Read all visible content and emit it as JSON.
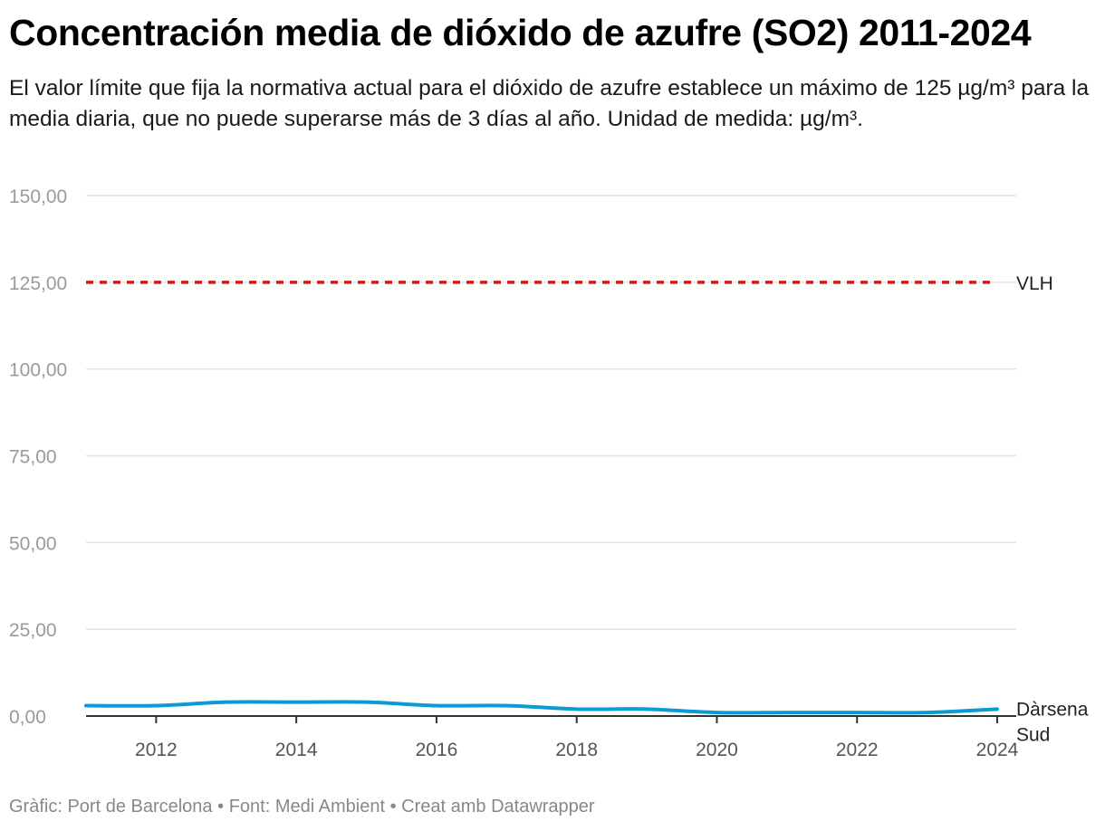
{
  "title": "Concentración media de dióxido de azufre (SO2) 2011-2024",
  "subtitle": "El valor límite que fija la normativa actual para el dióxido de azufre establece un máximo de 125 µg/m³ para la media diaria, que no puede superarse más de 3 días al año. Unidad de medida: µg/m³.",
  "footer": {
    "grafic": "Gràfic: Port de Barcelona",
    "separator": "•",
    "font": "Font: Medi Ambient",
    "credit": "Creat amb Datawrapper"
  },
  "colors": {
    "series": "#0a9bd6",
    "limit": "#cc1f1a",
    "grid": "#e3e3e3",
    "axis": "#333333"
  },
  "chart_data": {
    "type": "line",
    "title": "Concentración media de dióxido de azufre (SO2) 2011-2024",
    "xlabel": "",
    "ylabel": "",
    "xlim": [
      2011,
      2024
    ],
    "ylim": [
      0,
      150
    ],
    "x_ticks": [
      2012,
      2014,
      2016,
      2018,
      2020,
      2022,
      2024
    ],
    "x_tick_labels": [
      "2012",
      "2014",
      "2016",
      "2018",
      "2020",
      "2022",
      "2024"
    ],
    "y_ticks": [
      0,
      25,
      50,
      75,
      100,
      125,
      150
    ],
    "y_tick_labels": [
      "0,00",
      "25,00",
      "50,00",
      "75,00",
      "100,00",
      "125,00",
      "150,00"
    ],
    "grid": true,
    "series": [
      {
        "name": "Dàrsena Sud",
        "label_lines": [
          "Dàrsena",
          "Sud"
        ],
        "x": [
          2011,
          2012,
          2013,
          2014,
          2015,
          2016,
          2017,
          2018,
          2019,
          2020,
          2021,
          2022,
          2023,
          2024
        ],
        "values": [
          3,
          3,
          4,
          4,
          4,
          3,
          3,
          2,
          2,
          1,
          1,
          1,
          1,
          2
        ]
      }
    ],
    "reference_lines": [
      {
        "name": "VLH",
        "value": 125,
        "style": "dashed"
      }
    ]
  }
}
